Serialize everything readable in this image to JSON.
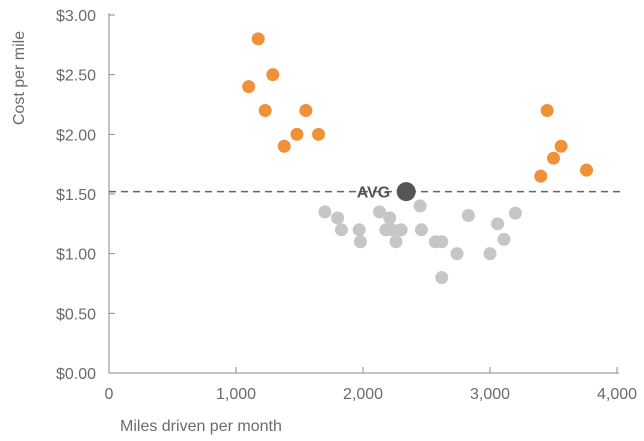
{
  "chart_data": {
    "type": "scatter",
    "title": "",
    "xlabel": "Miles driven per month",
    "ylabel": "Cost per mile",
    "xlim": [
      0,
      4000
    ],
    "ylim": [
      0,
      3
    ],
    "x_ticks": [
      0,
      1000,
      2000,
      3000,
      4000
    ],
    "x_tick_labels": [
      "0",
      "1,000",
      "2,000",
      "3,000",
      "4,000"
    ],
    "y_ticks": [
      0,
      0.5,
      1,
      1.5,
      2,
      2.5,
      3
    ],
    "y_tick_labels": [
      "$0.00",
      "$0.50",
      "$1.00",
      "$1.50",
      "$2.00",
      "$2.50",
      "$3.00"
    ],
    "grid": false,
    "series": [
      {
        "color": "#f0913a",
        "points": [
          {
            "x": 1100,
            "y": 2.4
          },
          {
            "x": 1175,
            "y": 2.8
          },
          {
            "x": 1230,
            "y": 2.2
          },
          {
            "x": 1290,
            "y": 2.5
          },
          {
            "x": 1380,
            "y": 1.9
          },
          {
            "x": 1480,
            "y": 2.0
          },
          {
            "x": 1550,
            "y": 2.2
          },
          {
            "x": 1650,
            "y": 2.0
          },
          {
            "x": 3400,
            "y": 1.65
          },
          {
            "x": 3450,
            "y": 2.2
          },
          {
            "x": 3500,
            "y": 1.8
          },
          {
            "x": 3560,
            "y": 1.9
          },
          {
            "x": 3760,
            "y": 1.7
          }
        ]
      },
      {
        "color": "#c6c6c6",
        "points": [
          {
            "x": 1700,
            "y": 1.35
          },
          {
            "x": 1800,
            "y": 1.3
          },
          {
            "x": 1830,
            "y": 1.2
          },
          {
            "x": 1970,
            "y": 1.2
          },
          {
            "x": 1980,
            "y": 1.1
          },
          {
            "x": 2130,
            "y": 1.35
          },
          {
            "x": 2180,
            "y": 1.2
          },
          {
            "x": 2210,
            "y": 1.3
          },
          {
            "x": 2230,
            "y": 1.2
          },
          {
            "x": 2260,
            "y": 1.1
          },
          {
            "x": 2300,
            "y": 1.2
          },
          {
            "x": 2450,
            "y": 1.4
          },
          {
            "x": 2460,
            "y": 1.2
          },
          {
            "x": 2570,
            "y": 1.1
          },
          {
            "x": 2620,
            "y": 1.1
          },
          {
            "x": 2620,
            "y": 0.8
          },
          {
            "x": 2740,
            "y": 1.0
          },
          {
            "x": 2830,
            "y": 1.32
          },
          {
            "x": 3000,
            "y": 1.0
          },
          {
            "x": 3060,
            "y": 1.25
          },
          {
            "x": 3110,
            "y": 1.12
          },
          {
            "x": 3200,
            "y": 1.34
          }
        ]
      }
    ],
    "average": {
      "label": "AVG",
      "x": 2340,
      "y": 1.52,
      "color": "#555555"
    },
    "reference_line": {
      "y": 1.52,
      "style": "dashed",
      "color": "#666666"
    }
  }
}
